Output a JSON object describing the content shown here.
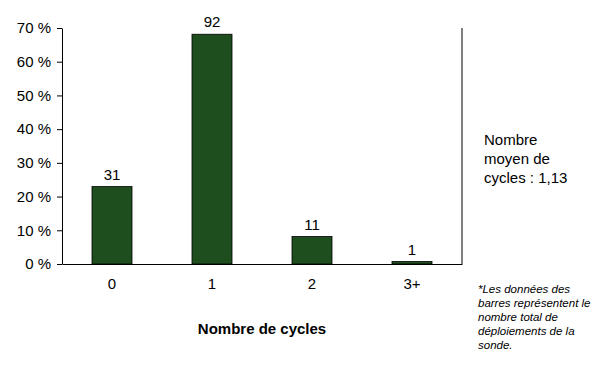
{
  "chart_data": {
    "type": "bar",
    "x_label": "Nombre de cycles",
    "categories": [
      "0",
      "1",
      "2",
      "3+"
    ],
    "values": [
      22.96,
      68.15,
      8.15,
      0.74
    ],
    "counts": [
      31,
      92,
      11,
      1
    ],
    "color": "#1e4d1e",
    "ylim": [
      0,
      70
    ],
    "yticks": [
      {
        "value": 0,
        "label": "0 %"
      },
      {
        "value": 10,
        "label": "10 %"
      },
      {
        "value": 20,
        "label": "20 %"
      },
      {
        "value": 30,
        "label": "30 %"
      },
      {
        "value": 40,
        "label": "40 %"
      },
      {
        "value": 50,
        "label": "50 %"
      },
      {
        "value": 60,
        "label": "60 %"
      },
      {
        "value": 70,
        "label": "70 %"
      }
    ],
    "grid": false,
    "annotations": [
      "Nombre moyen de cycles : 1,13",
      "*Les données des barres représentent le nombre total de déploiements de la sonde."
    ]
  }
}
